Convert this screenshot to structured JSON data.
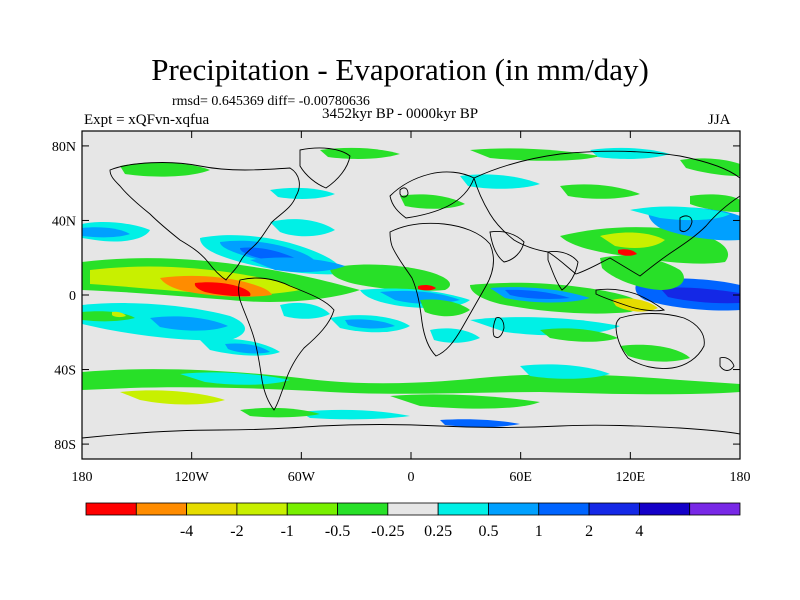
{
  "title": "Precipitation - Evaporation (in mm/day)",
  "stats_line": "rmsd= 0.645369 diff= -0.00780636",
  "period": "3452kyr BP - 0000kyr BP",
  "experiment": "Expt = xQFvn-xqfua",
  "season": "JJA",
  "map": {
    "background_color": "#e6e6e6",
    "lat_labels": [
      "80N",
      "40N",
      "0",
      "40S",
      "80S"
    ],
    "lat_values": [
      80,
      40,
      0,
      -40,
      -80
    ],
    "lon_labels": [
      "180",
      "120W",
      "60W",
      "0",
      "60E",
      "120E",
      "180"
    ],
    "lon_values": [
      -180,
      -120,
      -60,
      0,
      60,
      120,
      180
    ]
  },
  "colorbar": {
    "colors": [
      "#ff0000",
      "#ff8c00",
      "#e6dc00",
      "#c8f000",
      "#78f000",
      "#28e028",
      "#e6e6e6",
      "#00f0e6",
      "#00a0ff",
      "#0064ff",
      "#1428e6",
      "#1400c8",
      "#7828e6"
    ],
    "labels": [
      "-4",
      "-2",
      "-1",
      "-0.5",
      "-0.25",
      "0.25",
      "0.5",
      "1",
      "2",
      "4"
    ]
  }
}
